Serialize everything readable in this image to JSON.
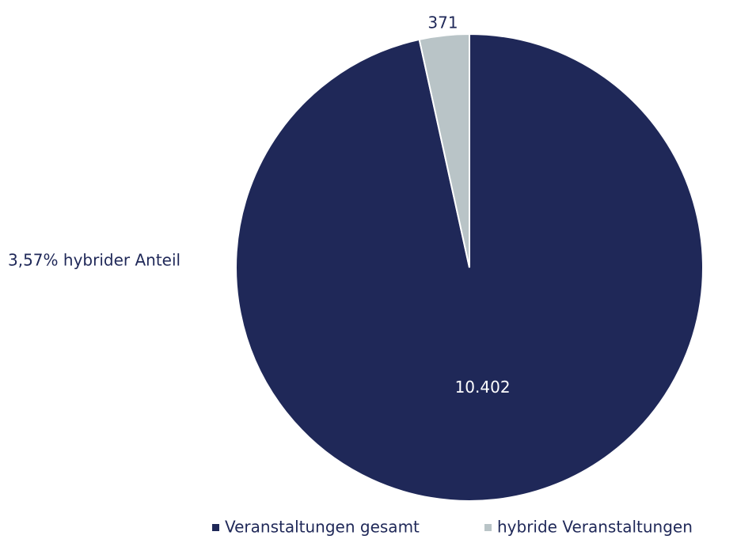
{
  "chart_data": {
    "type": "pie",
    "categories": [
      "Veranstaltungen gesamt",
      "hybride Veranstaltungen"
    ],
    "values": [
      10402,
      371
    ],
    "value_labels": [
      "10.402",
      "371"
    ],
    "colors": [
      "#1f2858",
      "#b9c4c7"
    ],
    "annotation": "3,57% hybrider Anteil",
    "legend": "bottom"
  }
}
